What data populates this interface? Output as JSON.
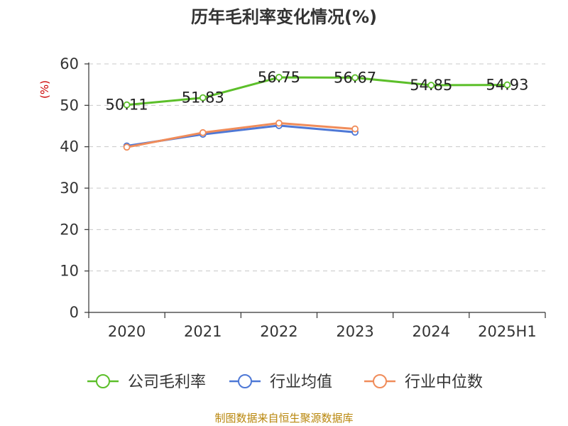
{
  "chart_data": {
    "type": "line",
    "title": "历年毛利率变化情况(%)",
    "ylabel": "(%)",
    "categories": [
      "2020",
      "2021",
      "2022",
      "2023",
      "2024",
      "2025H1"
    ],
    "ylim": [
      0,
      60
    ],
    "yticks": [
      0,
      10,
      20,
      30,
      40,
      50,
      60
    ],
    "grid": true,
    "legend_position": "bottom",
    "series": [
      {
        "name": "公司毛利率",
        "values": [
          50.11,
          51.83,
          56.75,
          56.67,
          54.85,
          54.93
        ],
        "labels": [
          "50.11",
          "51.83",
          "56.75",
          "56.67",
          "54.85",
          "54.93"
        ],
        "color": "#5cbf2a"
      },
      {
        "name": "行业均值",
        "values": [
          40.2,
          43.0,
          45.1,
          43.5,
          null,
          null
        ],
        "color": "#4e78d6"
      },
      {
        "name": "行业中位数",
        "values": [
          39.9,
          43.4,
          45.7,
          44.3,
          null,
          null
        ],
        "color": "#f08c5a"
      }
    ]
  },
  "source": "制图数据来自恒生聚源数据库"
}
